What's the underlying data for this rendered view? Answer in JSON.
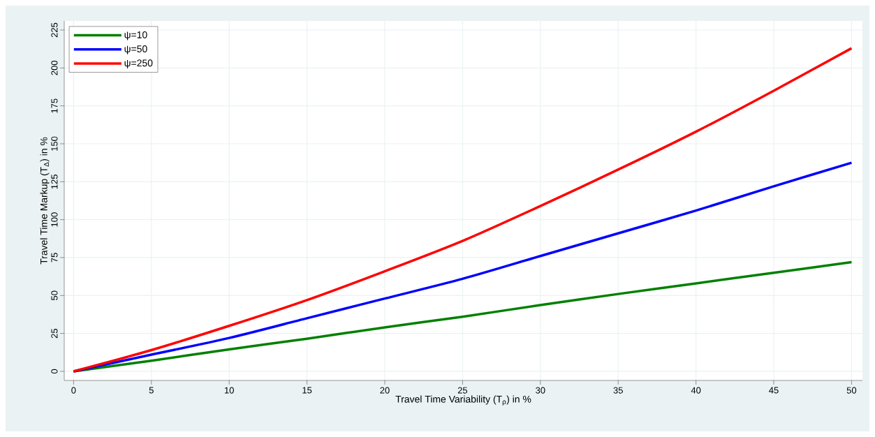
{
  "chart_data": {
    "type": "line",
    "xlabel": "Travel Time Variability (T$_{ρ}$) in %",
    "ylabel": "Travel Time Markup (T$_{Δ}$) in %",
    "x": [
      0,
      5,
      10,
      15,
      20,
      25,
      30,
      35,
      40,
      45,
      50
    ],
    "series": [
      {
        "name": "ψ=10",
        "color": "#008000",
        "values": [
          0,
          7,
          14.5,
          21.5,
          29,
          36,
          43.7,
          51,
          58,
          65,
          72
        ]
      },
      {
        "name": "ψ=50",
        "color": "#0000ff",
        "values": [
          0,
          11,
          22,
          35,
          48,
          61,
          76,
          91,
          106,
          122,
          137.5
        ]
      },
      {
        "name": "ψ=250",
        "color": "#ff0000",
        "values": [
          0,
          14,
          30,
          47,
          66,
          86,
          109,
          133,
          158,
          185,
          213
        ]
      }
    ],
    "xlim": [
      -0.6,
      50.7
    ],
    "ylim": [
      -6,
      231
    ],
    "xticks": [
      0,
      5,
      10,
      15,
      20,
      25,
      30,
      35,
      40,
      45,
      50
    ],
    "yticks": [
      0,
      25,
      50,
      75,
      100,
      125,
      150,
      175,
      200,
      225
    ],
    "grid": true,
    "legend": "top left",
    "marker": "none",
    "line_style": "solid"
  }
}
